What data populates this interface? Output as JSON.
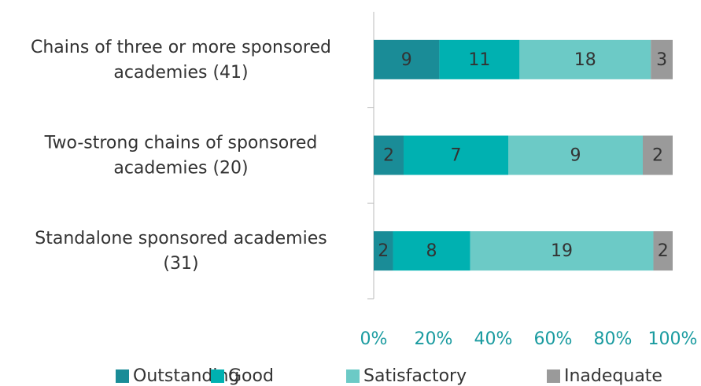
{
  "chart_data": {
    "type": "bar",
    "orientation": "horizontal",
    "stack": "percent",
    "categories": [
      [
        "Chains of three or more sponsored",
        "academies (41)"
      ],
      [
        "Two-strong chains of sponsored",
        "academies (20)"
      ],
      [
        "Standalone sponsored academies",
        "(31)"
      ]
    ],
    "series": [
      {
        "name": "Outstanding",
        "color": "#1a8c97",
        "values": [
          9,
          2,
          2
        ]
      },
      {
        "name": "Good",
        "color": "#00b1b1",
        "values": [
          11,
          7,
          8
        ]
      },
      {
        "name": "Satisfactory",
        "color": "#6ccac6",
        "values": [
          18,
          9,
          19
        ]
      },
      {
        "name": "Inadequate",
        "color": "#9a9a9a",
        "values": [
          3,
          2,
          2
        ]
      }
    ],
    "xlim": [
      0,
      100
    ],
    "xticks": [
      {
        "value": 0,
        "label": "0%"
      },
      {
        "value": 20,
        "label": "20%"
      },
      {
        "value": 40,
        "label": "40%"
      },
      {
        "value": 60,
        "label": "60%"
      },
      {
        "value": 80,
        "label": "80%"
      },
      {
        "value": 100,
        "label": "100%"
      }
    ],
    "legend": "bottom"
  }
}
